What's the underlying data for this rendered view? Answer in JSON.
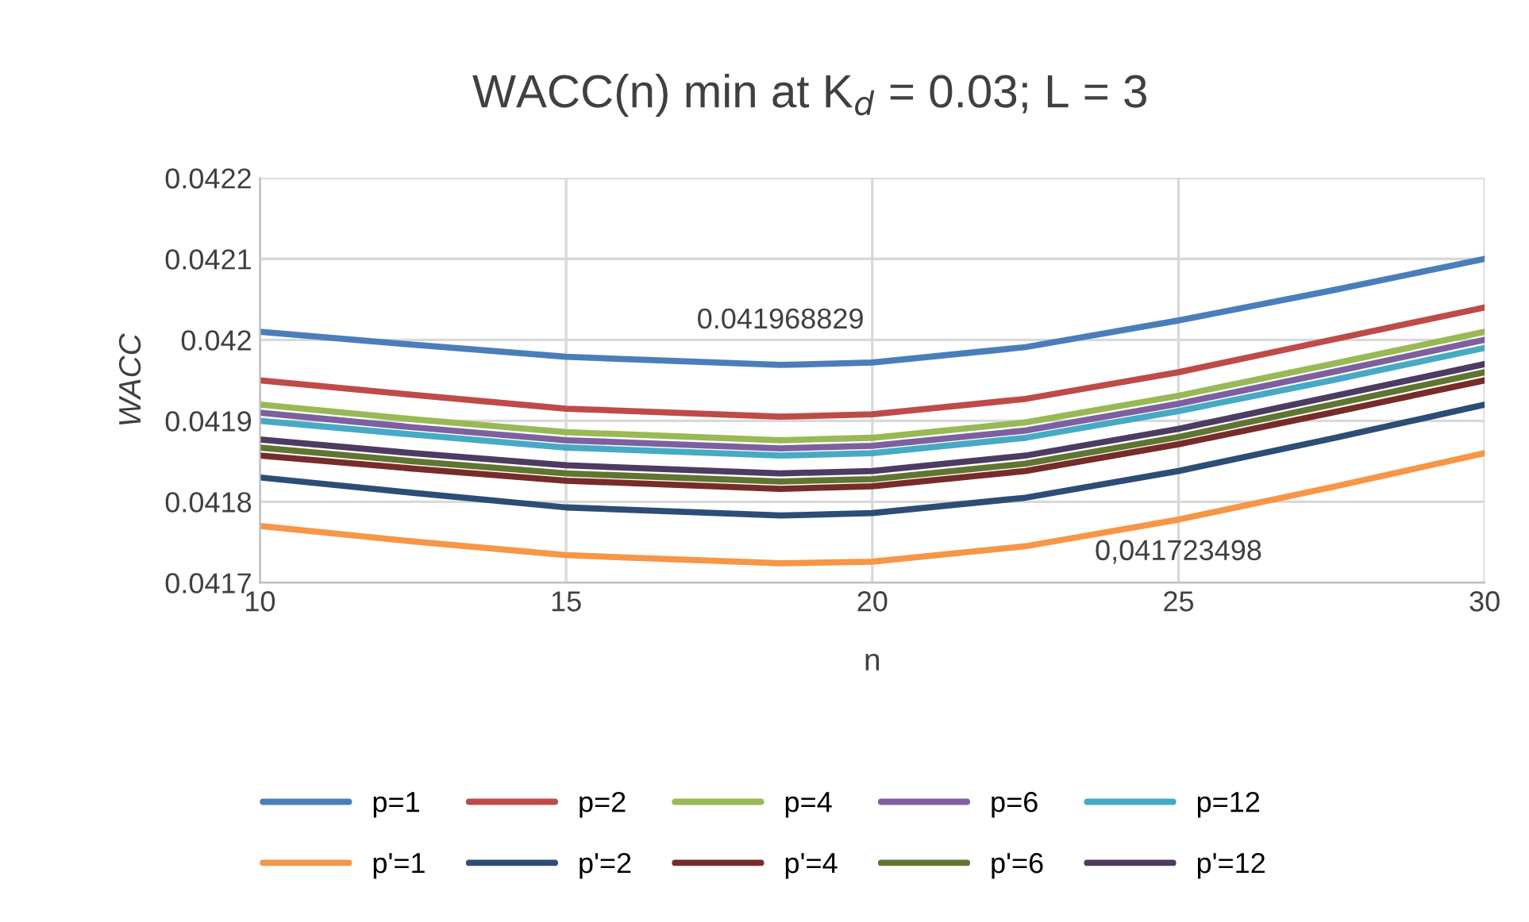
{
  "chart_data": {
    "type": "line",
    "title": "WACC(n) min at K$_{d}$ = 0.03; L = 3",
    "xlabel": "n",
    "ylabel": "WACC",
    "x": [
      10,
      12.5,
      15,
      18.5,
      20,
      22.5,
      25,
      27.5,
      30
    ],
    "xlim": [
      10,
      30
    ],
    "xticks": [
      10,
      15,
      20,
      25,
      30
    ],
    "ylim": [
      0.0417,
      0.0422
    ],
    "yticks": [
      0.0417,
      0.0418,
      0.0419,
      0.042,
      0.0421,
      0.0422
    ],
    "grid": true,
    "legend": "bottom",
    "marker": "none",
    "line_style": "solid",
    "series": [
      {
        "name": "p=1",
        "color": "#4a7ebb",
        "values": [
          0.04201,
          0.041994,
          0.041979,
          0.041969,
          0.041972,
          0.041991,
          0.042024,
          0.042061,
          0.0421
        ]
      },
      {
        "name": "p=2",
        "color": "#be4b48",
        "values": [
          0.04195,
          0.041932,
          0.041915,
          0.041905,
          0.041908,
          0.041927,
          0.04196,
          0.042,
          0.04204
        ]
      },
      {
        "name": "p=4",
        "color": "#98b954",
        "values": [
          0.04192,
          0.041902,
          0.041886,
          0.041876,
          0.041879,
          0.041898,
          0.041931,
          0.04197,
          0.04201
        ]
      },
      {
        "name": "p=6",
        "color": "#7d60a0",
        "values": [
          0.04191,
          0.041892,
          0.041876,
          0.041866,
          0.041869,
          0.041888,
          0.041921,
          0.04196,
          0.042
        ]
      },
      {
        "name": "p=12",
        "color": "#46aac5",
        "values": [
          0.0419,
          0.041883,
          0.041867,
          0.041857,
          0.04186,
          0.041879,
          0.041912,
          0.04195,
          0.04199
        ]
      },
      {
        "name": "p'=1",
        "color": "#f79646",
        "values": [
          0.04177,
          0.041751,
          0.041734,
          0.041724,
          0.041726,
          0.041745,
          0.041778,
          0.041818,
          0.04186
        ]
      },
      {
        "name": "p'=2",
        "color": "#2c4d75",
        "values": [
          0.04183,
          0.041811,
          0.041793,
          0.041783,
          0.041786,
          0.041805,
          0.041838,
          0.041878,
          0.04192
        ]
      },
      {
        "name": "p'=4",
        "color": "#772c2a",
        "values": [
          0.041857,
          0.041841,
          0.041826,
          0.041816,
          0.041819,
          0.041838,
          0.041871,
          0.04191,
          0.04195
        ]
      },
      {
        "name": "p'=6",
        "color": "#5f7530",
        "values": [
          0.041867,
          0.04185,
          0.041835,
          0.041825,
          0.041828,
          0.041847,
          0.04188,
          0.04192,
          0.04196
        ]
      },
      {
        "name": "p'=12",
        "color": "#4d3b62",
        "values": [
          0.041877,
          0.04186,
          0.041845,
          0.041835,
          0.041838,
          0.041857,
          0.04189,
          0.04193,
          0.04197
        ]
      }
    ],
    "annotations": [
      {
        "text": "0.041968829",
        "x": 18.5,
        "y": 0.041968829
      },
      {
        "text": "0,041723498",
        "x": 25,
        "y": 0.041778
      }
    ]
  }
}
